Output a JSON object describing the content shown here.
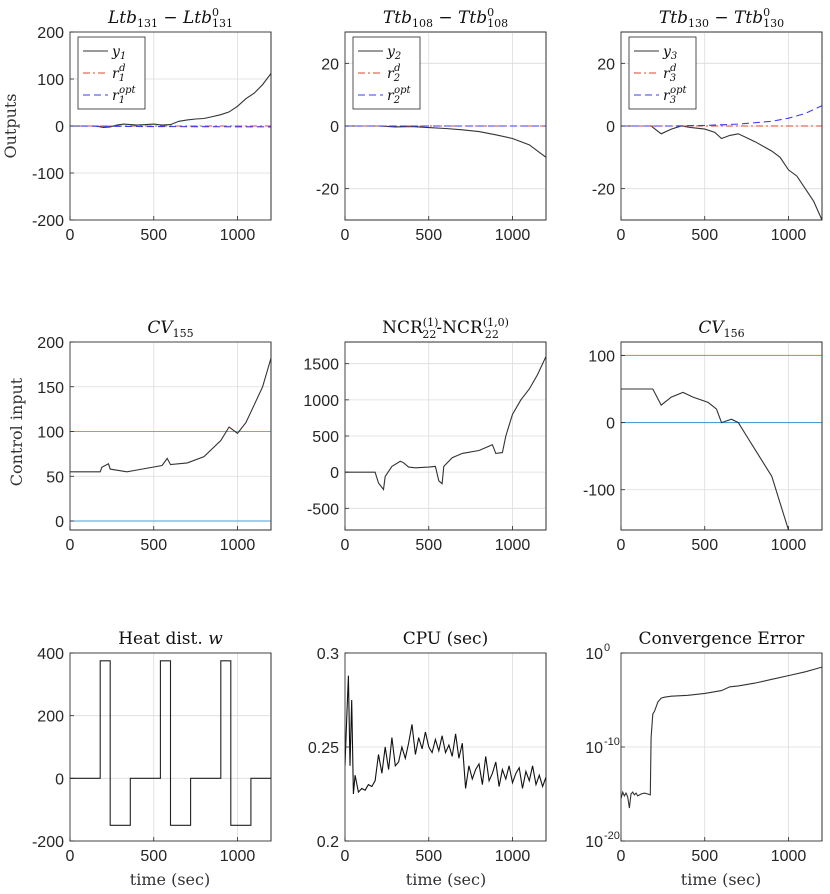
{
  "figure": {
    "row_labels": [
      "Outputs",
      "Control input"
    ],
    "xlabel": "time (sec)"
  },
  "chart_data": [
    {
      "id": "p1",
      "type": "line",
      "title": "Ltb131 - Ltb0131",
      "title_parts": [
        "Ltb",
        "131",
        " − Ltb",
        "0",
        "131"
      ],
      "xlim": [
        0,
        1200
      ],
      "ylim": [
        -200,
        200
      ],
      "xticks": [
        0,
        500,
        1000
      ],
      "yticks": [
        -200,
        -100,
        0,
        100,
        200
      ],
      "xtick_labels": [
        "0",
        "500",
        "1000"
      ],
      "ytick_labels": [
        "-200",
        "-100",
        "0",
        "100",
        "200"
      ],
      "legend": [
        "y1",
        "r1d",
        "r1opt"
      ],
      "series": [
        {
          "name": "y1",
          "color": "#333333",
          "dash": "",
          "x": [
            0,
            150,
            200,
            240,
            280,
            320,
            360,
            400,
            450,
            500,
            550,
            600,
            650,
            700,
            750,
            800,
            850,
            900,
            950,
            1000,
            1050,
            1100,
            1150,
            1200
          ],
          "y": [
            0,
            0,
            -3,
            -2,
            2,
            4,
            3,
            2,
            3,
            4,
            2,
            3,
            10,
            13,
            15,
            16,
            20,
            24,
            30,
            42,
            58,
            70,
            88,
            112
          ]
        },
        {
          "name": "r1d",
          "color": "#e0442b",
          "dash": "7 3 2 3",
          "x": [
            0,
            1200
          ],
          "y": [
            0,
            0
          ]
        },
        {
          "name": "r1opt",
          "color": "#3b3bf5",
          "dash": "7 4",
          "x": [
            0,
            400,
            800,
            1200
          ],
          "y": [
            0,
            -1,
            -1.5,
            -2
          ]
        }
      ]
    },
    {
      "id": "p2",
      "type": "line",
      "title": "Ttb108 - Ttb0108",
      "title_parts": [
        "Ttb",
        "108",
        " − Ttb",
        "0",
        "108"
      ],
      "xlim": [
        0,
        1200
      ],
      "ylim": [
        -30,
        30
      ],
      "xticks": [
        0,
        500,
        1000
      ],
      "yticks": [
        -20,
        0,
        20
      ],
      "xtick_labels": [
        "0",
        "500",
        "1000"
      ],
      "ytick_labels": [
        "-20",
        "0",
        "20"
      ],
      "legend": [
        "y2",
        "r2d",
        "r2opt"
      ],
      "series": [
        {
          "name": "y2",
          "color": "#333333",
          "dash": "",
          "x": [
            0,
            200,
            300,
            400,
            500,
            600,
            700,
            800,
            900,
            1000,
            1100,
            1200
          ],
          "y": [
            0,
            0,
            -0.3,
            -0.2,
            -0.5,
            -0.8,
            -1.2,
            -1.8,
            -2.8,
            -4,
            -6,
            -10
          ]
        },
        {
          "name": "r2d",
          "color": "#e0442b",
          "dash": "7 3 2 3",
          "x": [
            0,
            1200
          ],
          "y": [
            0,
            0
          ]
        },
        {
          "name": "r2opt",
          "color": "#3b3bf5",
          "dash": "7 4",
          "x": [
            0,
            1200
          ],
          "y": [
            0,
            0
          ]
        }
      ]
    },
    {
      "id": "p3",
      "type": "line",
      "title": "Ttb130 - Ttb0130",
      "title_parts": [
        "Ttb",
        "130",
        " − Ttb",
        "0",
        "130"
      ],
      "xlim": [
        0,
        1200
      ],
      "ylim": [
        -30,
        30
      ],
      "xticks": [
        0,
        500,
        1000
      ],
      "yticks": [
        -20,
        0,
        20
      ],
      "xtick_labels": [
        "0",
        "500",
        "1000"
      ],
      "ytick_labels": [
        "-20",
        "0",
        "20"
      ],
      "legend": [
        "y3",
        "r3d",
        "r3opt"
      ],
      "series": [
        {
          "name": "y3",
          "color": "#333333",
          "dash": "",
          "x": [
            0,
            180,
            240,
            300,
            360,
            420,
            500,
            560,
            600,
            650,
            700,
            800,
            900,
            950,
            1000,
            1050,
            1100,
            1150,
            1200
          ],
          "y": [
            0,
            0,
            -2.5,
            -1,
            0,
            -0.5,
            -1,
            -2,
            -4,
            -3,
            -2.5,
            -5,
            -8,
            -10,
            -14,
            -16,
            -20,
            -24,
            -30
          ]
        },
        {
          "name": "r3d",
          "color": "#e0442b",
          "dash": "7 3 2 3",
          "x": [
            0,
            1200
          ],
          "y": [
            0,
            0
          ]
        },
        {
          "name": "r3opt",
          "color": "#3b3bf5",
          "dash": "7 4",
          "x": [
            0,
            300,
            500,
            700,
            900,
            1000,
            1100,
            1200
          ],
          "y": [
            0,
            0,
            0.2,
            0.6,
            1.5,
            2.5,
            4,
            6.5
          ]
        }
      ]
    },
    {
      "id": "p4",
      "type": "line",
      "title": "CV155",
      "title_parts": [
        "CV",
        "155"
      ],
      "xlim": [
        0,
        1200
      ],
      "ylim": [
        -10,
        200
      ],
      "xticks": [
        0,
        500,
        1000
      ],
      "yticks": [
        0,
        50,
        100,
        150,
        200
      ],
      "xtick_labels": [
        "0",
        "500",
        "1000"
      ],
      "ytick_labels": [
        "0",
        "50",
        "100",
        "150",
        "200"
      ],
      "series": [
        {
          "name": "upper-bound",
          "color": "#e8835a",
          "dash": "",
          "x": [
            0,
            1200
          ],
          "y": [
            100,
            100
          ]
        },
        {
          "name": "lower-bound",
          "color": "#4a9fd8",
          "dash": "",
          "x": [
            0,
            1200
          ],
          "y": [
            0,
            0
          ]
        },
        {
          "name": "cv155",
          "color": "#333333",
          "dash": "",
          "x": [
            0,
            180,
            190,
            230,
            240,
            340,
            400,
            550,
            580,
            600,
            700,
            800,
            900,
            950,
            1000,
            1050,
            1100,
            1150,
            1200
          ],
          "y": [
            55,
            55,
            60,
            64,
            58,
            55,
            57,
            62,
            70,
            63,
            65,
            72,
            90,
            105,
            98,
            110,
            130,
            150,
            182
          ]
        }
      ]
    },
    {
      "id": "p5",
      "type": "line",
      "title": "NCR(1)22 - NCR(1,0)22",
      "title_parts": [
        "NCR",
        "(1)",
        "22",
        "-NCR",
        "(1,0)",
        "22"
      ],
      "xlim": [
        0,
        1200
      ],
      "ylim": [
        -800,
        1800
      ],
      "xticks": [
        0,
        500,
        1000
      ],
      "yticks": [
        -500,
        0,
        500,
        1000,
        1500
      ],
      "xtick_labels": [
        "0",
        "500",
        "1000"
      ],
      "ytick_labels": [
        "-500",
        "0",
        "500",
        "1000",
        "1500"
      ],
      "series": [
        {
          "name": "ncr22",
          "color": "#333333",
          "dash": "",
          "x": [
            0,
            180,
            200,
            230,
            240,
            280,
            330,
            350,
            380,
            420,
            500,
            540,
            560,
            580,
            590,
            640,
            700,
            800,
            880,
            900,
            940,
            960,
            1000,
            1050,
            1100,
            1150,
            1200
          ],
          "y": [
            0,
            0,
            -150,
            -240,
            -60,
            80,
            150,
            130,
            70,
            60,
            70,
            80,
            -120,
            -160,
            80,
            200,
            260,
            300,
            380,
            260,
            270,
            500,
            800,
            1000,
            1150,
            1350,
            1600
          ]
        }
      ]
    },
    {
      "id": "p6",
      "type": "line",
      "title": "CV156",
      "title_parts": [
        "CV",
        "156"
      ],
      "xlim": [
        0,
        1200
      ],
      "ylim": [
        -160,
        120
      ],
      "xticks": [
        0,
        500,
        1000
      ],
      "yticks": [
        -100,
        0,
        100
      ],
      "xtick_labels": [
        "0",
        "500",
        "1000"
      ],
      "ytick_labels": [
        "-100",
        "0",
        "100"
      ],
      "series": [
        {
          "name": "upper-bound",
          "color": "#e8835a",
          "dash": "",
          "x": [
            0,
            1200
          ],
          "y": [
            100,
            100
          ]
        },
        {
          "name": "lower-bound",
          "color": "#4a9fd8",
          "dash": "",
          "x": [
            0,
            1200
          ],
          "y": [
            0,
            0
          ]
        },
        {
          "name": "cv156",
          "color": "#333333",
          "dash": "",
          "x": [
            0,
            190,
            240,
            300,
            370,
            430,
            520,
            570,
            600,
            660,
            700,
            750,
            800,
            850,
            900,
            950,
            1000
          ],
          "y": [
            50,
            50,
            26,
            38,
            45,
            38,
            30,
            20,
            0,
            5,
            0,
            -20,
            -40,
            -60,
            -80,
            -120,
            -160
          ]
        }
      ]
    },
    {
      "id": "p7",
      "type": "line",
      "title": "Heat dist. w",
      "title_parts": [
        "Heat dist. ",
        "w"
      ],
      "xlim": [
        0,
        1200
      ],
      "ylim": [
        -200,
        400
      ],
      "xticks": [
        0,
        500,
        1000
      ],
      "yticks": [
        -200,
        0,
        200,
        400
      ],
      "xtick_labels": [
        "0",
        "500",
        "1000"
      ],
      "ytick_labels": [
        "-200",
        "0",
        "200",
        "400"
      ],
      "series": [
        {
          "name": "w",
          "color": "#222222",
          "dash": "",
          "x": [
            0,
            180,
            180,
            240,
            240,
            360,
            360,
            540,
            540,
            600,
            600,
            720,
            720,
            900,
            900,
            960,
            960,
            1080,
            1080,
            1200
          ],
          "y": [
            0,
            0,
            375,
            375,
            -150,
            -150,
            0,
            0,
            375,
            375,
            -150,
            -150,
            0,
            0,
            375,
            375,
            -150,
            -150,
            0,
            0
          ]
        }
      ]
    },
    {
      "id": "p8",
      "type": "line",
      "title": "CPU (sec)",
      "title_parts": [
        "CPU (sec)"
      ],
      "xlim": [
        0,
        1200
      ],
      "ylim": [
        0.2,
        0.3
      ],
      "xticks": [
        0,
        500,
        1000
      ],
      "yticks": [
        0.2,
        0.25,
        0.3
      ],
      "xtick_labels": [
        "0",
        "500",
        "1000"
      ],
      "ytick_labels": [
        "0.2",
        "0.25",
        "0.3"
      ],
      "series": [
        {
          "name": "cpu",
          "color": "#111111",
          "dash": "",
          "x": [
            0,
            10,
            20,
            30,
            40,
            50,
            60,
            80,
            100,
            120,
            140,
            160,
            180,
            200,
            220,
            240,
            260,
            280,
            300,
            320,
            340,
            360,
            380,
            400,
            420,
            440,
            460,
            480,
            500,
            520,
            540,
            560,
            580,
            600,
            620,
            640,
            660,
            680,
            700,
            720,
            740,
            760,
            780,
            800,
            820,
            840,
            860,
            880,
            900,
            920,
            940,
            960,
            980,
            1000,
            1020,
            1040,
            1060,
            1080,
            1100,
            1120,
            1140,
            1160,
            1180,
            1200
          ],
          "y": [
            0.24,
            0.265,
            0.288,
            0.24,
            0.275,
            0.225,
            0.235,
            0.226,
            0.228,
            0.227,
            0.23,
            0.229,
            0.232,
            0.246,
            0.236,
            0.25,
            0.238,
            0.255,
            0.24,
            0.242,
            0.25,
            0.244,
            0.252,
            0.262,
            0.246,
            0.255,
            0.249,
            0.258,
            0.25,
            0.247,
            0.254,
            0.248,
            0.256,
            0.247,
            0.251,
            0.245,
            0.257,
            0.244,
            0.252,
            0.228,
            0.24,
            0.233,
            0.238,
            0.241,
            0.23,
            0.245,
            0.232,
            0.236,
            0.242,
            0.229,
            0.238,
            0.233,
            0.24,
            0.231,
            0.236,
            0.239,
            0.228,
            0.237,
            0.232,
            0.24,
            0.23,
            0.235,
            0.229,
            0.234
          ]
        }
      ]
    },
    {
      "id": "p9",
      "type": "line",
      "title": "Convergence Error",
      "title_parts": [
        "Convergence Error"
      ],
      "xlim": [
        0,
        1200
      ],
      "ylim_log10": [
        -20,
        0
      ],
      "xticks": [
        0,
        500,
        1000
      ],
      "yticks_log10": [
        -20,
        -10,
        0
      ],
      "xtick_labels": [
        "0",
        "500",
        "1000"
      ],
      "ytick_labels": [
        "10",
        "10",
        "10"
      ],
      "ytick_exponents": [
        "-20",
        "-10",
        "0"
      ],
      "series": [
        {
          "name": "error",
          "color": "#333333",
          "dash": "",
          "x": [
            0,
            10,
            20,
            30,
            40,
            50,
            60,
            70,
            80,
            90,
            100,
            120,
            140,
            160,
            175,
            180,
            190,
            200,
            220,
            240,
            260,
            300,
            400,
            500,
            600,
            650,
            700,
            800,
            900,
            1000,
            1100,
            1200
          ],
          "y_log10": [
            -15.5,
            -14.8,
            -15.2,
            -14.9,
            -15.3,
            -16.5,
            -15.0,
            -14.8,
            -15.1,
            -14.9,
            -15.2,
            -15.0,
            -14.9,
            -15.0,
            -15.1,
            -9,
            -6.5,
            -6.2,
            -5.2,
            -4.8,
            -4.7,
            -4.6,
            -4.5,
            -4.3,
            -4.0,
            -3.6,
            -3.5,
            -3.2,
            -2.8,
            -2.4,
            -2.0,
            -1.5
          ]
        }
      ]
    }
  ]
}
